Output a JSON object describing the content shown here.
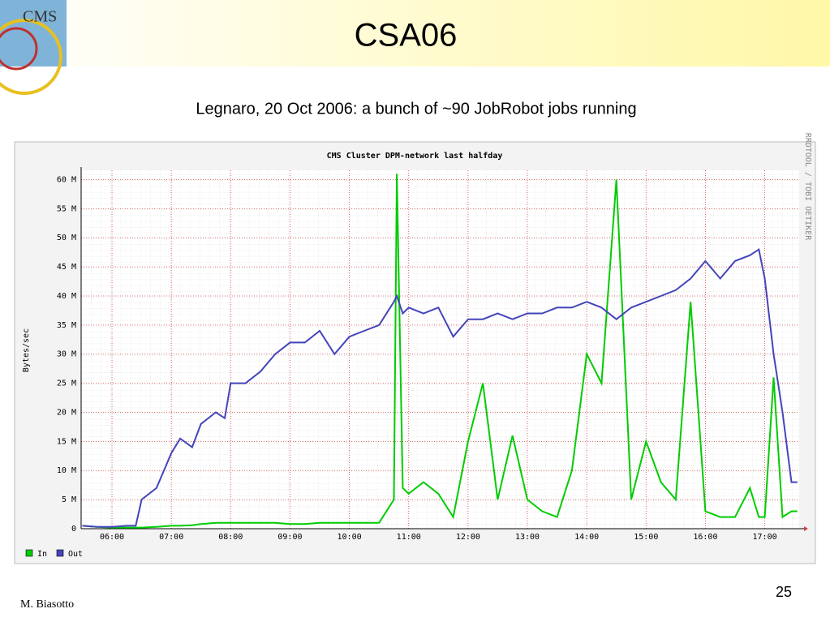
{
  "slide": {
    "title": "CSA06",
    "subtitle": "Legnaro, 20 Oct 2006: a bunch of ~90 JobRobot jobs running",
    "author": "M. Biasotto",
    "page": "25",
    "logo": "CMS"
  },
  "chart_data": {
    "type": "line",
    "title": "CMS Cluster DPM-network last halfday",
    "ylabel": "Bytes/sec",
    "watermark": "RRDTOOL / TOBI OETIKER",
    "x": [
      5.5,
      5.75,
      6.0,
      6.25,
      6.4,
      6.5,
      6.75,
      7.0,
      7.15,
      7.35,
      7.5,
      7.75,
      7.9,
      8.0,
      8.25,
      8.5,
      8.75,
      9.0,
      9.25,
      9.5,
      9.75,
      10.0,
      10.25,
      10.5,
      10.75,
      10.8,
      10.9,
      11.0,
      11.25,
      11.5,
      11.75,
      12.0,
      12.25,
      12.5,
      12.75,
      13.0,
      13.25,
      13.5,
      13.75,
      14.0,
      14.25,
      14.5,
      14.75,
      15.0,
      15.25,
      15.5,
      15.75,
      16.0,
      16.25,
      16.5,
      16.75,
      16.9,
      17.0,
      17.15,
      17.3,
      17.45,
      17.55
    ],
    "series": [
      {
        "name": "In",
        "color": "#00cc00",
        "values": [
          0.5,
          0.3,
          0.2,
          0.2,
          0.2,
          0.2,
          0.3,
          0.5,
          0.5,
          0.6,
          0.8,
          1,
          1,
          1,
          1,
          1,
          1,
          0.8,
          0.8,
          1,
          1,
          1,
          1,
          1,
          5,
          61,
          7,
          6,
          8,
          6,
          2,
          15,
          25,
          5,
          16,
          5,
          3,
          2,
          10,
          30,
          25,
          60,
          5,
          15,
          8,
          5,
          39,
          3,
          2,
          2,
          7,
          2,
          2,
          26,
          2,
          3,
          3
        ]
      },
      {
        "name": "Out",
        "color": "#4444bb",
        "values": [
          0.5,
          0.3,
          0.3,
          0.5,
          0.5,
          5,
          7,
          13,
          15.5,
          14,
          18,
          20,
          19,
          25,
          25,
          27,
          30,
          32,
          32,
          34,
          30,
          33,
          34,
          35,
          39,
          40,
          37,
          38,
          37,
          38,
          33,
          36,
          36,
          37,
          36,
          37,
          37,
          38,
          38,
          39,
          38,
          36,
          38,
          39,
          40,
          41,
          43,
          46,
          43,
          46,
          47,
          48,
          43,
          30,
          20,
          8,
          8
        ]
      }
    ],
    "xlim": [
      5.48,
      17.58
    ],
    "xticks": [
      {
        "value": 6,
        "label": "06:00"
      },
      {
        "value": 7,
        "label": "07:00"
      },
      {
        "value": 8,
        "label": "08:00"
      },
      {
        "value": 9,
        "label": "09:00"
      },
      {
        "value": 10,
        "label": "10:00"
      },
      {
        "value": 11,
        "label": "11:00"
      },
      {
        "value": 12,
        "label": "12:00"
      },
      {
        "value": 13,
        "label": "13:00"
      },
      {
        "value": 14,
        "label": "14:00"
      },
      {
        "value": 15,
        "label": "15:00"
      },
      {
        "value": 16,
        "label": "16:00"
      },
      {
        "value": 17,
        "label": "17:00"
      }
    ],
    "ylim": [
      0,
      61.6
    ],
    "yticks": [
      0,
      {
        "value": 5,
        "label": "5 M"
      },
      {
        "value": 10,
        "label": "10 M"
      },
      {
        "value": 15,
        "label": "15 M"
      },
      {
        "value": 20,
        "label": "20 M"
      },
      {
        "value": 25,
        "label": "25 M"
      },
      {
        "value": 30,
        "label": "30 M"
      },
      {
        "value": 35,
        "label": "35 M"
      },
      {
        "value": 40,
        "label": "40 M"
      },
      {
        "value": 45,
        "label": "45 M"
      },
      {
        "value": 50,
        "label": "50 M"
      },
      {
        "value": 55,
        "label": "55 M"
      },
      {
        "value": 60,
        "label": "60 M"
      }
    ],
    "grid": true
  }
}
